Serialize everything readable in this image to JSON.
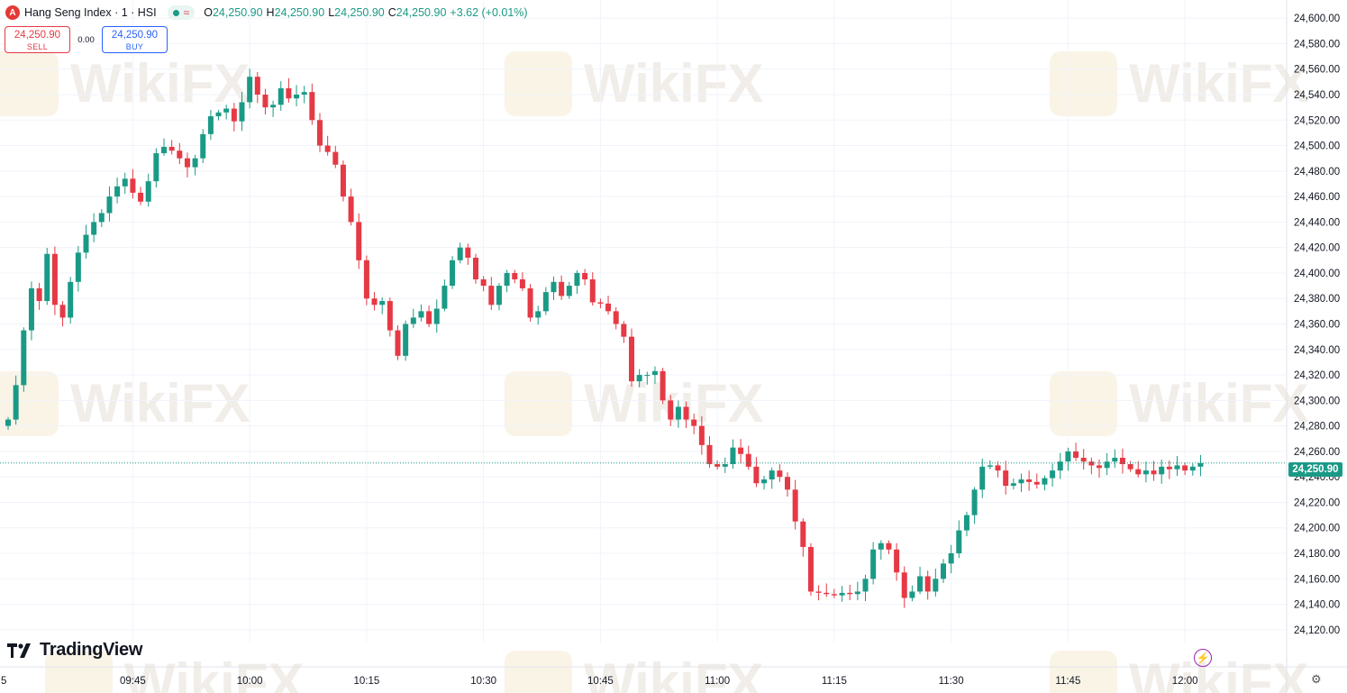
{
  "header": {
    "symbol_badge": "A",
    "symbol": "Hang Seng Index · 1 · HSI",
    "status_wave": "≈",
    "ohlc": {
      "o_label": "O",
      "o": "24,250.90",
      "h_label": "H",
      "h": "24,250.90",
      "l_label": "L",
      "l": "24,250.90",
      "c_label": "C",
      "c": "24,250.90",
      "change": "+3.62 (+0.01%)"
    }
  },
  "trade": {
    "sell_price": "24,250.90",
    "sell_label": "SELL",
    "spread": "0.00",
    "buy_price": "24,250.90",
    "buy_label": "BUY"
  },
  "branding": {
    "logo_text": "TradingView",
    "watermark": "WikiFX"
  },
  "current_price_tag": "24,250.90",
  "colors": {
    "up": "#1a9a86",
    "down": "#e53945",
    "grid": "#f0f3fa",
    "accent_bolt": "#9c27b0"
  },
  "icons": {
    "bolt": "lightning-icon",
    "settings": "gear-icon"
  },
  "chart_data": {
    "type": "candlestick",
    "title": "Hang Seng Index · 1 · HSI",
    "interval_minutes": 1,
    "y_range": [
      24110,
      24610
    ],
    "y_ticks": [
      24120,
      24140,
      24160,
      24180,
      24200,
      24220,
      24240,
      24260,
      24280,
      24300,
      24320,
      24340,
      24360,
      24380,
      24400,
      24420,
      24440,
      24460,
      24480,
      24500,
      24520,
      24540,
      24560,
      24580,
      24600
    ],
    "y_tick_labels": [
      "24,120.00",
      "24,140.00",
      "24,160.00",
      "24,180.00",
      "24,200.00",
      "24,220.00",
      "24,240.00",
      "24,260.00",
      "24,280.00",
      "24,300.00",
      "24,320.00",
      "24,340.00",
      "24,360.00",
      "24,380.00",
      "24,400.00",
      "24,420.00",
      "24,440.00",
      "24,460.00",
      "24,480.00",
      "24,500.00",
      "24,520.00",
      "24,540.00",
      "24,560.00",
      "24,580.00",
      "24,600.00"
    ],
    "x_ticks": [
      "09:45",
      "10:00",
      "10:15",
      "10:30",
      "10:45",
      "11:00",
      "11:15",
      "11:30",
      "11:45",
      "12:00"
    ],
    "x_edge_label": "5",
    "last_price": 24250.9,
    "grid": true,
    "closes": [
      24285,
      24312,
      24355,
      24388,
      24378,
      24415,
      24375,
      24365,
      24393,
      24416,
      24430,
      24440,
      24447,
      24460,
      24468,
      24474,
      24463,
      24456,
      24472,
      24494,
      24499,
      24496,
      24490,
      24483,
      24490,
      24509,
      24523,
      24526,
      24529,
      24519,
      24534,
      24554,
      24540,
      24530,
      24532,
      24545,
      24537,
      24540,
      24542,
      24520,
      24500,
      24495,
      24485,
      24460,
      24440,
      24410,
      24380,
      24375,
      24378,
      24355,
      24335,
      24360,
      24365,
      24370,
      24360,
      24372,
      24390,
      24410,
      24420,
      24412,
      24395,
      24390,
      24375,
      24390,
      24400,
      24395,
      24388,
      24365,
      24370,
      24385,
      24393,
      24382,
      24390,
      24400,
      24395,
      24377,
      24376,
      24370,
      24360,
      24350,
      24315,
      24320,
      24320,
      24323,
      24300,
      24285,
      24295,
      24285,
      24280,
      24265,
      24250,
      24248,
      24250,
      24263,
      24258,
      24248,
      24235,
      24238,
      24245,
      24240,
      24230,
      24205,
      24185,
      24150,
      24149,
      24148,
      24147,
      24149,
      24148,
      24150,
      24160,
      24183,
      24188,
      24183,
      24165,
      24145,
      24150,
      24162,
      24150,
      24160,
      24172,
      24180,
      24198,
      24210,
      24230,
      24248,
      24249,
      24245,
      24233,
      24235,
      24238,
      24236,
      24234,
      24239,
      24245,
      24252,
      24260,
      24255,
      24252,
      24249,
      24247,
      24252,
      24255,
      24250,
      24246,
      24242,
      24245,
      24242,
      24248,
      24246,
      24249,
      24245,
      24248,
      24250.9
    ],
    "first_open": 24280
  }
}
